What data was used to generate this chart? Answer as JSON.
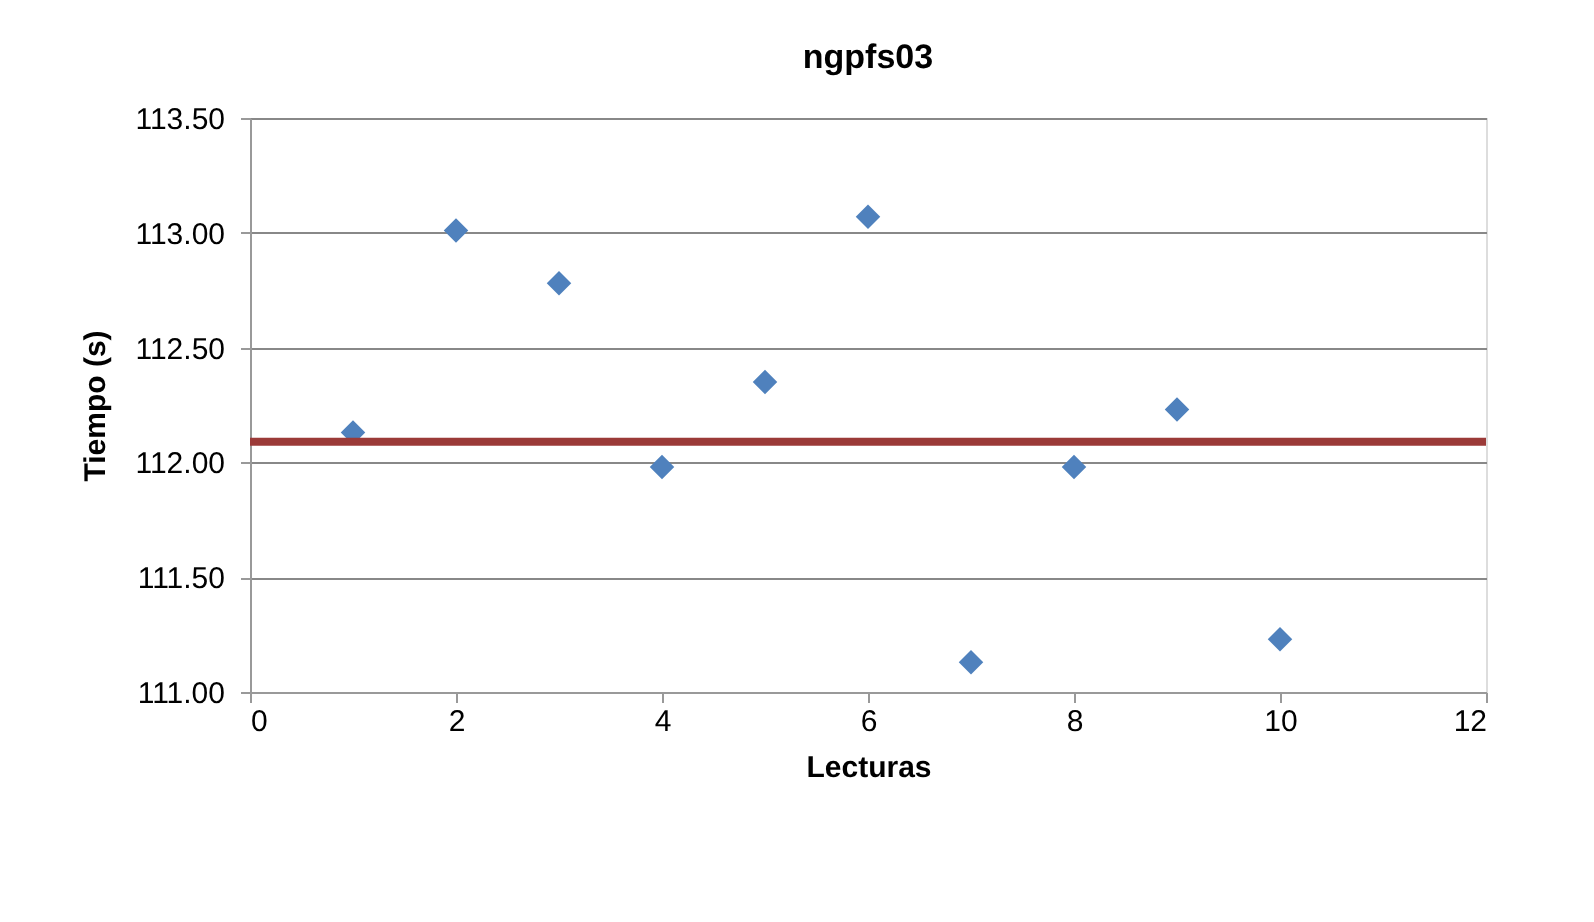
{
  "chart_data": {
    "type": "scatter",
    "title": "ngpfs03",
    "xlabel": "Lecturas",
    "ylabel": "Tiempo (s)",
    "x": [
      1,
      2,
      3,
      4,
      5,
      6,
      7,
      8,
      9,
      10
    ],
    "series": [
      {
        "color": "#4f81bd",
        "values": [
          112.13,
          113.01,
          112.78,
          111.98,
          112.35,
          113.07,
          111.13,
          111.98,
          112.23,
          111.23
        ]
      }
    ],
    "xlim": [
      0,
      12
    ],
    "xticks": [
      0,
      2,
      4,
      6,
      8,
      10,
      12
    ],
    "ylim": [
      111.0,
      113.5
    ],
    "yticks": [
      {
        "value": 111.0,
        "label": "111.00"
      },
      {
        "value": 111.5,
        "label": "111.50"
      },
      {
        "value": 112.0,
        "label": "112.00"
      },
      {
        "value": 112.5,
        "label": "112.50"
      },
      {
        "value": 113.0,
        "label": "113.00"
      },
      {
        "value": 113.5,
        "label": "113.50"
      }
    ],
    "ref_lines": [
      {
        "axis": "y",
        "value": 112.09,
        "color": "#9b3a38"
      }
    ],
    "grid": "y",
    "marker": "diamond"
  }
}
